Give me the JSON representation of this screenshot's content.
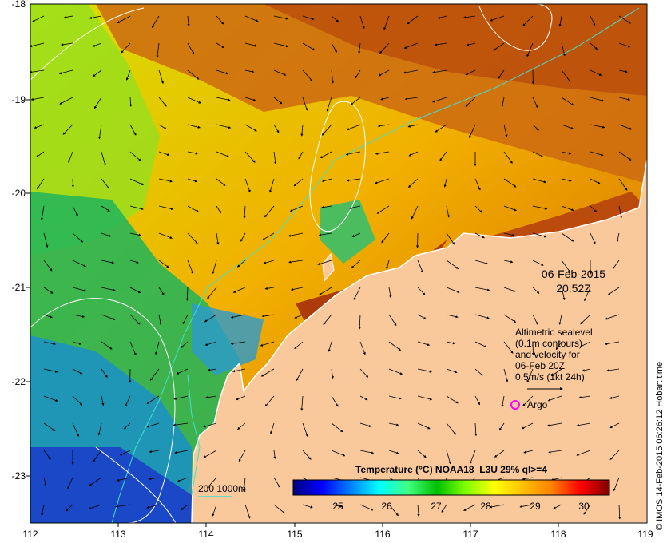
{
  "map": {
    "lon_ticks": [
      "112",
      "113",
      "114",
      "115",
      "116",
      "117",
      "118",
      "119"
    ],
    "lat_ticks": [
      "-18",
      "-19",
      "-20",
      "-21",
      "-22",
      "-23"
    ],
    "date": "06-Feb-2015",
    "time": "20:52Z",
    "altimetry_note": [
      "Altimetric sealevel",
      "(0.1m contours)",
      "and velocity for",
      "06-Feb 20Z",
      "0.5m/s (1kt 24h)"
    ],
    "argo_label": "Argo",
    "bathymetry_label": "200  1000m",
    "credit": "© IMOS 14-Feb-2015 06:26:12 Hobart time"
  },
  "colorbar": {
    "title": "Temperature (°C) NOAA18_L3U 29% ql>=4",
    "tick_labels": [
      "25",
      "26",
      "27",
      "28",
      "29",
      "30"
    ],
    "stops": [
      "#00007f",
      "#0000ff",
      "#0080ff",
      "#00ffff",
      "#40ff80",
      "#00c000",
      "#80ff00",
      "#ffff00",
      "#ffc000",
      "#ff8000",
      "#ff0000",
      "#800000"
    ]
  },
  "colors": {
    "land": "#f9c89b",
    "coast": "#ffffff",
    "bathy_200": "#40e0d0",
    "argo": "#ff00ff"
  }
}
